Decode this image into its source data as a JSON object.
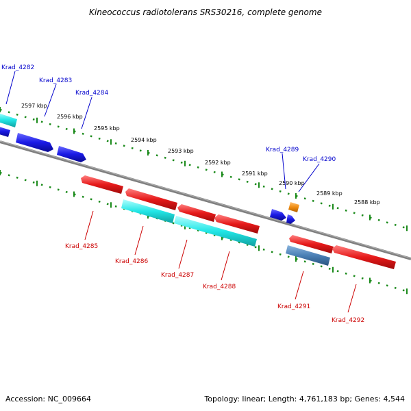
{
  "title": "Kineococcus radiotolerans SRS30216, complete genome",
  "accession": "Accession: NC_009664",
  "topology": "Topology: linear; Length: 4,761,183 bp; Genes: 4,544",
  "colors": {
    "backbone": "#808080",
    "tick": "#1a8a1a",
    "forward_label": "#0000cc",
    "reverse_label": "#cc0000",
    "blue": "#1a1ae6",
    "cyan": "#22e6e6",
    "red": "#e61a1a",
    "orange": "#f08c10",
    "steel": "#4a7fb5"
  },
  "kbp_labels": [
    "2597 kbp",
    "2596 kbp",
    "2595 kbp",
    "2594 kbp",
    "2593 kbp",
    "2592 kbp",
    "2591 kbp",
    "2590 kbp",
    "2589 kbp",
    "2588 kbp"
  ],
  "genes": [
    {
      "id": "krad4282",
      "name": "Krad_4282",
      "color": "cyan",
      "strand": "forward"
    },
    {
      "id": "krad4283",
      "name": "Krad_4283",
      "color": "blue",
      "strand": "forward"
    },
    {
      "id": "krad4284",
      "name": "Krad_4284",
      "color": "blue",
      "strand": "forward"
    },
    {
      "id": "krad4289",
      "name": "Krad_4289",
      "color": "blue",
      "strand": "forward"
    },
    {
      "id": "krad4290",
      "name": "Krad_4290",
      "color": "orange",
      "strand": "forward"
    },
    {
      "id": "krad4285",
      "name": "Krad_4285",
      "color": "red",
      "strand": "reverse"
    },
    {
      "id": "krad4286",
      "name": "Krad_4286",
      "color": "cyan",
      "strand": "reverse"
    },
    {
      "id": "krad4287",
      "name": "Krad_4287",
      "color": "cyan",
      "strand": "reverse"
    },
    {
      "id": "krad4288",
      "name": "Krad_4288",
      "color": "red",
      "strand": "reverse"
    },
    {
      "id": "krad4291",
      "name": "Krad_4291",
      "color": "steel",
      "strand": "reverse"
    },
    {
      "id": "krad4292",
      "name": "Krad_4292",
      "color": "red",
      "strand": "reverse"
    }
  ]
}
